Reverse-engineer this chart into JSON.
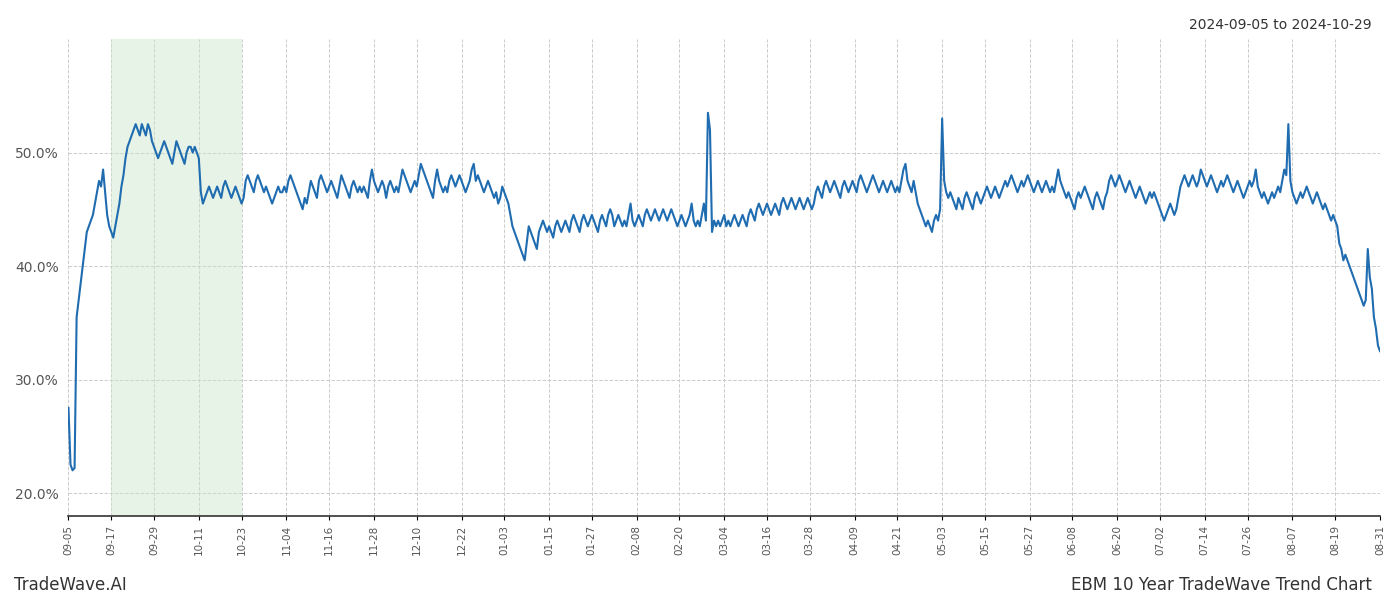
{
  "title_right": "2024-09-05 to 2024-10-29",
  "footer_left": "TradeWave.AI",
  "footer_right": "EBM 10 Year TradeWave Trend Chart",
  "line_color": "#1f6cb0",
  "line_width": 1.5,
  "highlight_color": "#c8e6c9",
  "highlight_alpha": 0.45,
  "bg_color": "#ffffff",
  "grid_color": "#cccccc",
  "grid_style": "--",
  "ylabel_color": "#555555",
  "ylim": [
    18.0,
    60.0
  ],
  "yticks": [
    20.0,
    30.0,
    40.0,
    50.0
  ],
  "x_labels": [
    "09-05",
    "09-17",
    "09-29",
    "10-11",
    "10-23",
    "11-04",
    "11-16",
    "11-28",
    "12-10",
    "12-22",
    "01-03",
    "01-15",
    "01-27",
    "02-08",
    "02-20",
    "03-04",
    "03-16",
    "03-28",
    "04-09",
    "04-21",
    "05-03",
    "05-15",
    "05-27",
    "06-08",
    "06-20",
    "07-02",
    "07-14",
    "07-26",
    "08-07",
    "08-19",
    "08-31"
  ],
  "highlight_start_label": "09-11",
  "highlight_end_label": "10-29",
  "values": [
    27.5,
    22.5,
    22.0,
    22.2,
    35.5,
    37.0,
    38.5,
    40.0,
    41.5,
    43.0,
    43.5,
    44.0,
    44.5,
    45.5,
    46.5,
    47.5,
    47.0,
    48.5,
    46.5,
    44.5,
    43.5,
    43.0,
    42.5,
    43.5,
    44.5,
    45.5,
    47.0,
    48.0,
    49.5,
    50.5,
    51.0,
    51.5,
    52.0,
    52.5,
    52.0,
    51.5,
    52.5,
    52.0,
    51.5,
    52.5,
    52.0,
    51.0,
    50.5,
    50.0,
    49.5,
    50.0,
    50.5,
    51.0,
    50.5,
    50.0,
    49.5,
    49.0,
    50.0,
    51.0,
    50.5,
    50.0,
    49.5,
    49.0,
    50.0,
    50.5,
    50.5,
    50.0,
    50.5,
    50.0,
    49.5,
    46.5,
    45.5,
    46.0,
    46.5,
    47.0,
    46.5,
    46.0,
    46.5,
    47.0,
    46.5,
    46.0,
    47.0,
    47.5,
    47.0,
    46.5,
    46.0,
    46.5,
    47.0,
    46.5,
    46.0,
    45.5,
    46.0,
    47.5,
    48.0,
    47.5,
    47.0,
    46.5,
    47.5,
    48.0,
    47.5,
    47.0,
    46.5,
    47.0,
    46.5,
    46.0,
    45.5,
    46.0,
    46.5,
    47.0,
    46.5,
    46.5,
    47.0,
    46.5,
    47.5,
    48.0,
    47.5,
    47.0,
    46.5,
    46.0,
    45.5,
    45.0,
    46.0,
    45.5,
    46.5,
    47.5,
    47.0,
    46.5,
    46.0,
    47.5,
    48.0,
    47.5,
    47.0,
    46.5,
    47.0,
    47.5,
    47.0,
    46.5,
    46.0,
    47.0,
    48.0,
    47.5,
    47.0,
    46.5,
    46.0,
    47.0,
    47.5,
    47.0,
    46.5,
    47.0,
    46.5,
    47.0,
    46.5,
    46.0,
    47.5,
    48.5,
    47.5,
    47.0,
    46.5,
    47.0,
    47.5,
    47.0,
    46.0,
    47.0,
    47.5,
    47.0,
    46.5,
    47.0,
    46.5,
    47.5,
    48.5,
    48.0,
    47.5,
    47.0,
    46.5,
    47.0,
    47.5,
    47.0,
    48.0,
    49.0,
    48.5,
    48.0,
    47.5,
    47.0,
    46.5,
    46.0,
    47.5,
    48.5,
    47.5,
    47.0,
    46.5,
    47.0,
    46.5,
    47.5,
    48.0,
    47.5,
    47.0,
    47.5,
    48.0,
    47.5,
    47.0,
    46.5,
    47.0,
    47.5,
    48.5,
    49.0,
    47.5,
    48.0,
    47.5,
    47.0,
    46.5,
    47.0,
    47.5,
    47.0,
    46.5,
    46.0,
    46.5,
    45.5,
    46.0,
    47.0,
    46.5,
    46.0,
    45.5,
    44.5,
    43.5,
    43.0,
    42.5,
    42.0,
    41.5,
    41.0,
    40.5,
    42.0,
    43.5,
    43.0,
    42.5,
    42.0,
    41.5,
    43.0,
    43.5,
    44.0,
    43.5,
    43.0,
    43.5,
    43.0,
    42.5,
    43.5,
    44.0,
    43.5,
    43.0,
    43.5,
    44.0,
    43.5,
    43.0,
    44.0,
    44.5,
    44.0,
    43.5,
    43.0,
    44.0,
    44.5,
    44.0,
    43.5,
    44.0,
    44.5,
    44.0,
    43.5,
    43.0,
    44.0,
    44.5,
    44.0,
    43.5,
    44.5,
    45.0,
    44.5,
    43.5,
    44.0,
    44.5,
    44.0,
    43.5,
    44.0,
    43.5,
    44.5,
    45.5,
    44.0,
    43.5,
    44.0,
    44.5,
    44.0,
    43.5,
    44.5,
    45.0,
    44.5,
    44.0,
    44.5,
    45.0,
    44.5,
    44.0,
    44.5,
    45.0,
    44.5,
    44.0,
    44.5,
    45.0,
    44.5,
    44.0,
    43.5,
    44.0,
    44.5,
    44.0,
    43.5,
    44.0,
    44.5,
    45.5,
    44.0,
    43.5,
    44.0,
    43.5,
    44.5,
    45.5,
    44.0,
    53.5,
    52.0,
    43.0,
    44.0,
    43.5,
    44.0,
    43.5,
    44.0,
    44.5,
    43.5,
    44.0,
    43.5,
    44.0,
    44.5,
    44.0,
    43.5,
    44.0,
    44.5,
    44.0,
    43.5,
    44.5,
    45.0,
    44.5,
    44.0,
    45.0,
    45.5,
    45.0,
    44.5,
    45.0,
    45.5,
    45.0,
    44.5,
    45.0,
    45.5,
    45.0,
    44.5,
    45.5,
    46.0,
    45.5,
    45.0,
    45.5,
    46.0,
    45.5,
    45.0,
    45.5,
    46.0,
    45.5,
    45.0,
    45.5,
    46.0,
    45.5,
    45.0,
    45.5,
    46.5,
    47.0,
    46.5,
    46.0,
    47.0,
    47.5,
    47.0,
    46.5,
    47.0,
    47.5,
    47.0,
    46.5,
    46.0,
    47.0,
    47.5,
    47.0,
    46.5,
    47.0,
    47.5,
    47.0,
    46.5,
    47.5,
    48.0,
    47.5,
    47.0,
    46.5,
    47.0,
    47.5,
    48.0,
    47.5,
    47.0,
    46.5,
    47.0,
    47.5,
    47.0,
    46.5,
    47.0,
    47.5,
    47.0,
    46.5,
    47.0,
    46.5,
    47.5,
    48.5,
    49.0,
    47.5,
    47.0,
    46.5,
    47.5,
    46.5,
    45.5,
    45.0,
    44.5,
    44.0,
    43.5,
    44.0,
    43.5,
    43.0,
    44.0,
    44.5,
    44.0,
    45.0,
    53.0,
    47.5,
    46.5,
    46.0,
    46.5,
    46.0,
    45.5,
    45.0,
    46.0,
    45.5,
    45.0,
    46.0,
    46.5,
    46.0,
    45.5,
    45.0,
    46.0,
    46.5,
    46.0,
    45.5,
    46.0,
    46.5,
    47.0,
    46.5,
    46.0,
    46.5,
    47.0,
    46.5,
    46.0,
    46.5,
    47.0,
    47.5,
    47.0,
    47.5,
    48.0,
    47.5,
    47.0,
    46.5,
    47.0,
    47.5,
    47.0,
    47.5,
    48.0,
    47.5,
    47.0,
    46.5,
    47.0,
    47.5,
    47.0,
    46.5,
    47.0,
    47.5,
    47.0,
    46.5,
    47.0,
    46.5,
    47.5,
    48.5,
    47.5,
    47.0,
    46.5,
    46.0,
    46.5,
    46.0,
    45.5,
    45.0,
    46.0,
    46.5,
    46.0,
    46.5,
    47.0,
    46.5,
    46.0,
    45.5,
    45.0,
    46.0,
    46.5,
    46.0,
    45.5,
    45.0,
    46.0,
    46.5,
    47.5,
    48.0,
    47.5,
    47.0,
    47.5,
    48.0,
    47.5,
    47.0,
    46.5,
    47.0,
    47.5,
    47.0,
    46.5,
    46.0,
    46.5,
    47.0,
    46.5,
    46.0,
    45.5,
    46.0,
    46.5,
    46.0,
    46.5,
    46.0,
    45.5,
    45.0,
    44.5,
    44.0,
    44.5,
    45.0,
    45.5,
    45.0,
    44.5,
    45.0,
    46.0,
    47.0,
    47.5,
    48.0,
    47.5,
    47.0,
    47.5,
    48.0,
    47.5,
    47.0,
    47.5,
    48.5,
    48.0,
    47.5,
    47.0,
    47.5,
    48.0,
    47.5,
    47.0,
    46.5,
    47.0,
    47.5,
    47.0,
    47.5,
    48.0,
    47.5,
    47.0,
    46.5,
    47.0,
    47.5,
    47.0,
    46.5,
    46.0,
    46.5,
    47.0,
    47.5,
    47.0,
    47.5,
    48.5,
    47.0,
    46.5,
    46.0,
    46.5,
    46.0,
    45.5,
    46.0,
    46.5,
    46.0,
    46.5,
    47.0,
    46.5,
    47.5,
    48.5,
    48.0,
    52.5,
    47.5,
    46.5,
    46.0,
    45.5,
    46.0,
    46.5,
    46.0,
    46.5,
    47.0,
    46.5,
    46.0,
    45.5,
    46.0,
    46.5,
    46.0,
    45.5,
    45.0,
    45.5,
    45.0,
    44.5,
    44.0,
    44.5,
    44.0,
    43.5,
    42.0,
    41.5,
    40.5,
    41.0,
    40.5,
    40.0,
    39.5,
    39.0,
    38.5,
    38.0,
    37.5,
    37.0,
    36.5,
    37.0,
    41.5,
    39.0,
    38.0,
    35.5,
    34.5,
    33.0,
    32.5
  ]
}
